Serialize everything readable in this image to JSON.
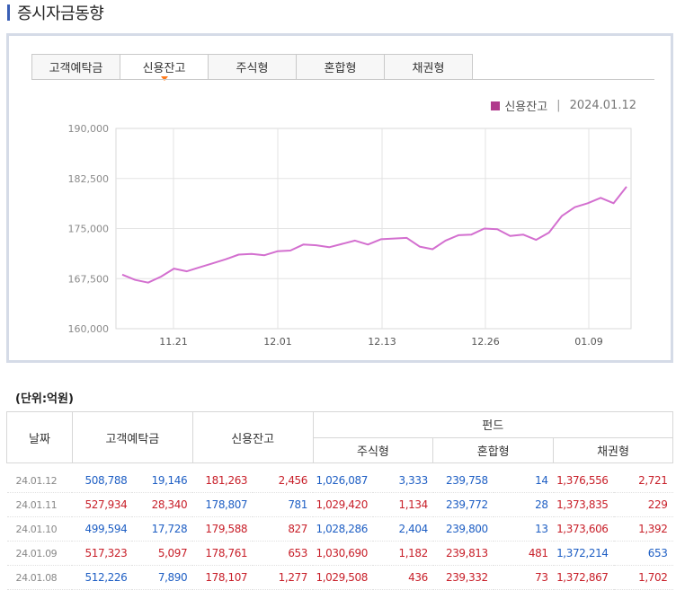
{
  "page": {
    "title": "증시자금동향"
  },
  "tabs": [
    {
      "label": "고객예탁금"
    },
    {
      "label": "신용잔고"
    },
    {
      "label": "주식형"
    },
    {
      "label": "혼합형"
    },
    {
      "label": "채권형"
    }
  ],
  "active_tab": "신용잔고",
  "legend": {
    "series": "신용잔고",
    "separator": "|",
    "date": "2024.01.12",
    "color": "#b03a8c"
  },
  "chart_data": {
    "type": "line",
    "series": [
      {
        "name": "신용잔고",
        "color": "#d36fcf",
        "values": [
          168100,
          167300,
          166900,
          167800,
          169000,
          168600,
          169200,
          169800,
          170400,
          171100,
          171200,
          171000,
          171600,
          171700,
          172600,
          172500,
          172200,
          172700,
          173200,
          172600,
          173400,
          173500,
          173600,
          172300,
          171900,
          173200,
          174000,
          174100,
          175000,
          174900,
          173900,
          174100,
          173300,
          174400,
          176900,
          178200,
          178800,
          179600,
          178800,
          181263
        ]
      }
    ],
    "x_tick_labels": [
      "11.21",
      "12.01",
      "12.13",
      "12.26",
      "01.09"
    ],
    "y_tick_labels": [
      "190,000",
      "182,500",
      "175,000",
      "167,500",
      "160,000"
    ],
    "ylim": [
      160000,
      190000
    ],
    "grid": true
  },
  "unit_label": "(단위:억원)",
  "table": {
    "headers": {
      "date": "날짜",
      "deposit": "고객예탁금",
      "credit": "신용잔고",
      "fund": "펀드",
      "stock": "주식형",
      "mixed": "혼합형",
      "bond": "채권형"
    },
    "rows": [
      {
        "date": "24.01.12",
        "deposit": "508,788",
        "deposit_chg": "19,146",
        "credit": "181,263",
        "credit_chg": "2,456",
        "stock": "1,026,087",
        "stock_chg": "3,333",
        "mixed": "239,758",
        "mixed_chg": "14",
        "bond": "1,376,556",
        "bond_chg": "2,721"
      },
      {
        "date": "24.01.11",
        "deposit": "527,934",
        "deposit_chg": "28,340",
        "credit": "178,807",
        "credit_chg": "781",
        "stock": "1,029,420",
        "stock_chg": "1,134",
        "mixed": "239,772",
        "mixed_chg": "28",
        "bond": "1,373,835",
        "bond_chg": "229"
      },
      {
        "date": "24.01.10",
        "deposit": "499,594",
        "deposit_chg": "17,728",
        "credit": "179,588",
        "credit_chg": "827",
        "stock": "1,028,286",
        "stock_chg": "2,404",
        "mixed": "239,800",
        "mixed_chg": "13",
        "bond": "1,373,606",
        "bond_chg": "1,392"
      },
      {
        "date": "24.01.09",
        "deposit": "517,323",
        "deposit_chg": "5,097",
        "credit": "178,761",
        "credit_chg": "653",
        "stock": "1,030,690",
        "stock_chg": "1,182",
        "mixed": "239,813",
        "mixed_chg": "481",
        "bond": "1,372,214",
        "bond_chg": "653"
      },
      {
        "date": "24.01.08",
        "deposit": "512,226",
        "deposit_chg": "7,890",
        "credit": "178,107",
        "credit_chg": "1,277",
        "stock": "1,029,508",
        "stock_chg": "436",
        "mixed": "239,332",
        "mixed_chg": "73",
        "bond": "1,372,867",
        "bond_chg": "1,702"
      }
    ],
    "colors": {
      "up": "#c8202a",
      "down": "#1f5fc4"
    }
  }
}
